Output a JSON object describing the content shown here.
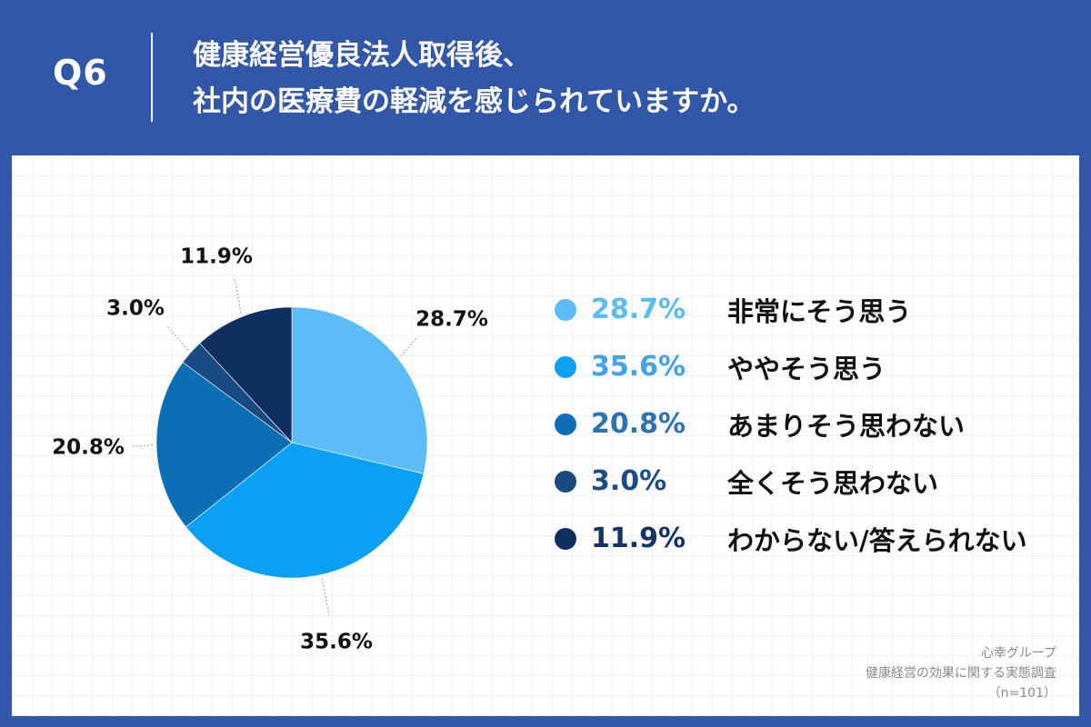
{
  "header": {
    "question_number": "Q6",
    "title_lines": [
      "健康経営優良法人取得後、",
      "社内の医療費の軽減を感じられていますか。"
    ]
  },
  "chart_data": {
    "type": "pie",
    "categories": [
      "非常にそう思う",
      "ややそう思う",
      "あまりそう思わない",
      "全くそう思わない",
      "わからない/答えられない"
    ],
    "values": [
      28.7,
      35.6,
      20.8,
      3.0,
      11.9
    ],
    "value_labels": [
      "28.7%",
      "35.6%",
      "20.8%",
      "3.0%",
      "11.9%"
    ],
    "colors": [
      "#5bbcf8",
      "#0aa1f5",
      "#0c6fb5",
      "#174b82",
      "#0f2f5e"
    ],
    "legend_value_colors": [
      "#5bbcf8",
      "#3fa3ef",
      "#2a73b8",
      "#1d4c86",
      "#143468"
    ],
    "start": "12 o'clock",
    "direction": "clockwise",
    "legend_position": "right"
  },
  "source": {
    "lines": [
      "心幸グループ",
      "健康経営の効果に関する実態調査",
      "（n=101）"
    ]
  }
}
